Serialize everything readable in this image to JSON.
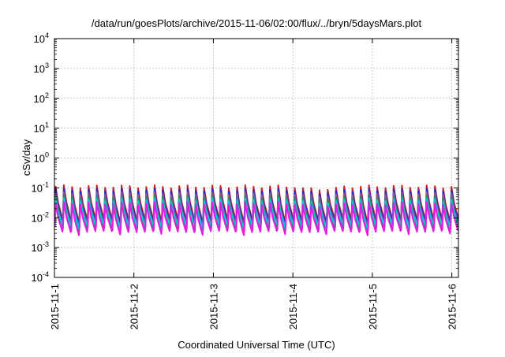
{
  "chart_data": {
    "type": "line",
    "title": "/data/run/goesPlots/archive/2015-11-06/02:00/flux/../bryn/5daysMars.plot",
    "xlabel": "Coordinated Universal Time (UTC)",
    "ylabel": "cSv/day",
    "y_scale": "log",
    "ylim": [
      0.0001,
      10000
    ],
    "y_ticks": [
      {
        "base": "10",
        "exp": "-4"
      },
      {
        "base": "10",
        "exp": "-3"
      },
      {
        "base": "10",
        "exp": "-2"
      },
      {
        "base": "10",
        "exp": "-1"
      },
      {
        "base": "10",
        "exp": "0"
      },
      {
        "base": "10",
        "exp": "1"
      },
      {
        "base": "10",
        "exp": "2"
      },
      {
        "base": "10",
        "exp": "3"
      },
      {
        "base": "10",
        "exp": "4"
      }
    ],
    "xlim": [
      "2015-11-01T00:00",
      "2015-11-06T02:00"
    ],
    "x_ticks": [
      "2015-11-1",
      "2015-11-2",
      "2015-11-3",
      "2015-11-4",
      "2015-11-5",
      "2015-11-6"
    ],
    "grid": true,
    "legend": "none",
    "sawtooth_cycles": 49,
    "series": [
      {
        "color": "#cc2222",
        "peak": 0.11,
        "trough": 0.012
      },
      {
        "color": "#1e2bd6",
        "peak": 0.085,
        "trough": 0.01
      },
      {
        "color": "#8a5a8a",
        "peak": 0.065,
        "trough": 0.008
      },
      {
        "color": "#2e8b57",
        "peak": 0.05,
        "trough": 0.006
      },
      {
        "color": "#00c8d2",
        "peak": 0.04,
        "trough": 0.0075
      },
      {
        "color": "#e01ee0",
        "peak": 0.03,
        "trough": 0.0045
      }
    ]
  }
}
